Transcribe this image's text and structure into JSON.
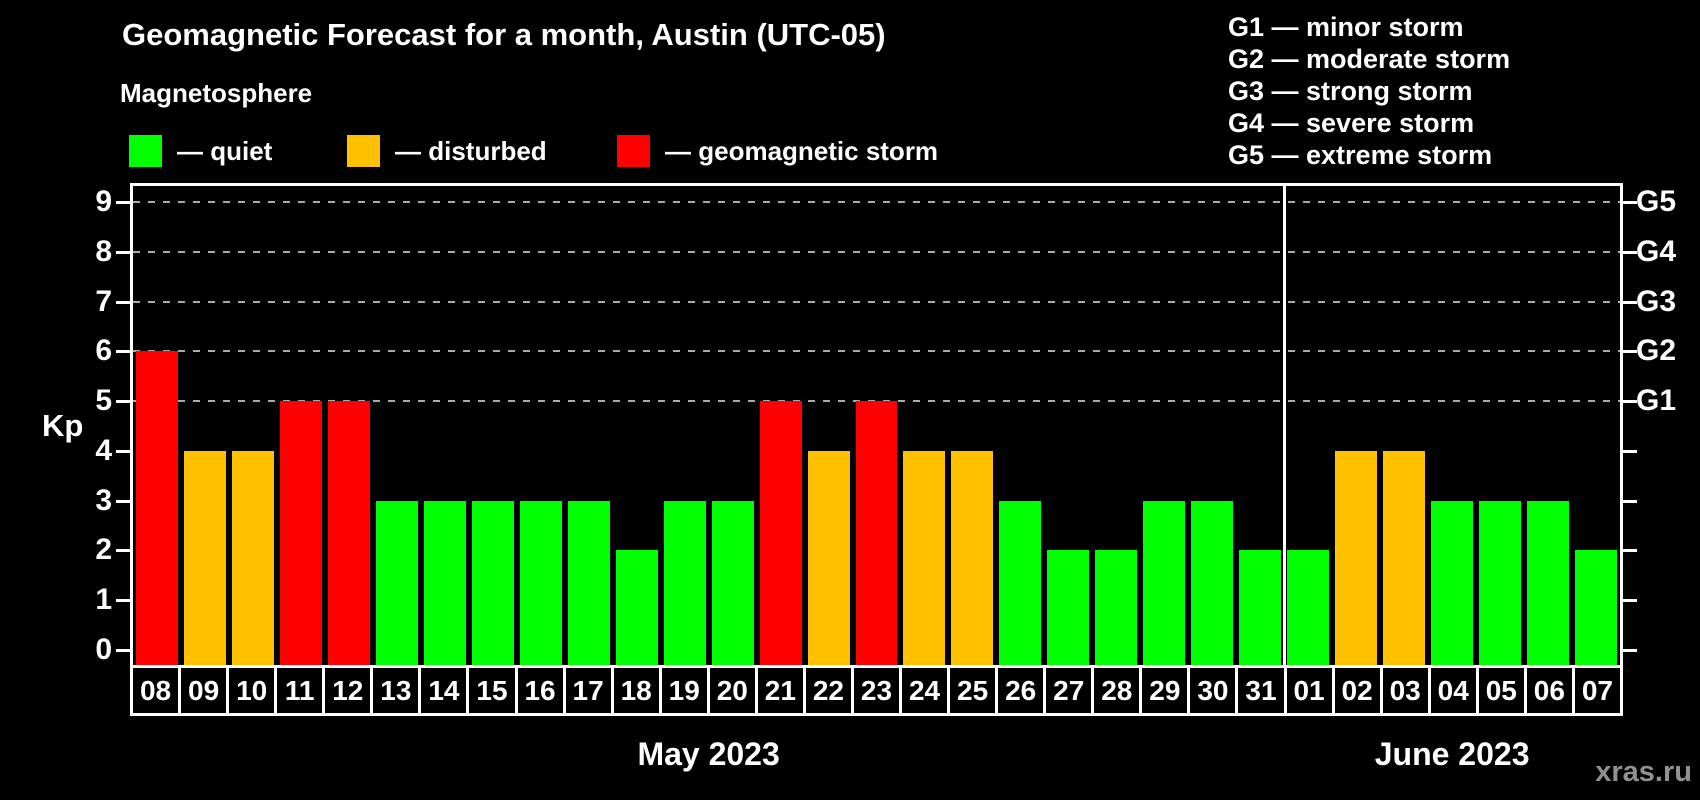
{
  "title": "Geomagnetic Forecast for a month, Austin (UTC-05)",
  "subtitle": "Magnetosphere",
  "legend": {
    "items": [
      {
        "status": "quiet",
        "label": "— quiet"
      },
      {
        "status": "disturbed",
        "label": "— disturbed"
      },
      {
        "status": "storm",
        "label": "— geomagnetic storm"
      }
    ]
  },
  "g_scale_legend": [
    "G1 — minor storm",
    "G2 — moderate storm",
    "G3 — strong storm",
    "G4 — severe storm",
    "G5 — extreme storm"
  ],
  "watermark": "xras.ru",
  "colors": {
    "background": "#000000",
    "axis": "#ffffff",
    "gridline": "#aaaaaa",
    "watermark_text": "#919191"
  },
  "chart_data": {
    "type": "bar",
    "title": "Geomagnetic Forecast for a month, Austin (UTC-05)",
    "xlabel": "",
    "ylabel": "Kp",
    "ylim": [
      0,
      9
    ],
    "y_ticks": [
      0,
      1,
      2,
      3,
      4,
      5,
      6,
      7,
      8,
      9
    ],
    "gridlines_at": [
      5,
      6,
      7,
      8,
      9
    ],
    "grid_style": "dashed gray, only at storm levels G1-G5",
    "legend_position": "top-left",
    "right_axis": [
      {
        "kp": 5,
        "label": "G1"
      },
      {
        "kp": 6,
        "label": "G2"
      },
      {
        "kp": 7,
        "label": "G3"
      },
      {
        "kp": 8,
        "label": "G4"
      },
      {
        "kp": 9,
        "label": "G5"
      }
    ],
    "bar_colors": {
      "quiet": "#00ff00",
      "disturbed": "#ffc000",
      "storm": "#ff0000"
    },
    "months": [
      {
        "label": "May 2023",
        "days": [
          "08",
          "09",
          "10",
          "11",
          "12",
          "13",
          "14",
          "15",
          "16",
          "17",
          "18",
          "19",
          "20",
          "21",
          "22",
          "23",
          "24",
          "25",
          "26",
          "27",
          "28",
          "29",
          "30",
          "31"
        ],
        "values": [
          6,
          4,
          4,
          5,
          5,
          3,
          3,
          3,
          3,
          3,
          2,
          3,
          3,
          5,
          4,
          5,
          4,
          4,
          3,
          2,
          2,
          3,
          3,
          2
        ],
        "statuses": [
          "storm",
          "disturbed",
          "disturbed",
          "storm",
          "storm",
          "quiet",
          "quiet",
          "quiet",
          "quiet",
          "quiet",
          "quiet",
          "quiet",
          "quiet",
          "storm",
          "disturbed",
          "storm",
          "disturbed",
          "disturbed",
          "quiet",
          "quiet",
          "quiet",
          "quiet",
          "quiet",
          "quiet"
        ]
      },
      {
        "label": "June 2023",
        "days": [
          "01",
          "02",
          "03",
          "04",
          "05",
          "06",
          "07"
        ],
        "values": [
          2,
          4,
          4,
          3,
          3,
          3,
          2
        ],
        "statuses": [
          "quiet",
          "disturbed",
          "disturbed",
          "quiet",
          "quiet",
          "quiet",
          "quiet"
        ]
      }
    ]
  }
}
